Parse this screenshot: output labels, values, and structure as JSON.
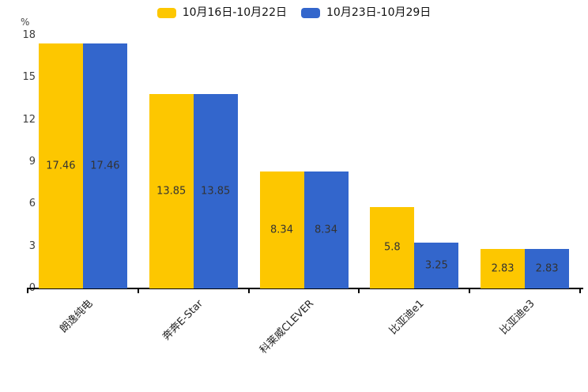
{
  "chart_data": {
    "type": "bar",
    "title": "",
    "ylabel": "%",
    "categories": [
      "朗逸纯电",
      "奔奔E-Star",
      "科莱威CLEVER",
      "比亚迪e1",
      "比亚迪e3"
    ],
    "series": [
      {
        "name": "10月16日-10月22日",
        "color": "#FDC700",
        "values": [
          17.46,
          13.85,
          8.34,
          5.8,
          2.83
        ]
      },
      {
        "name": "10月23日-10月29日",
        "color": "#3366CC",
        "values": [
          17.46,
          13.85,
          8.34,
          3.25,
          2.83
        ]
      }
    ],
    "ylim": [
      0,
      18
    ],
    "yticks": [
      0,
      3,
      6,
      9,
      12,
      15,
      18
    ],
    "grid": false,
    "legend_position": "top",
    "axis_color": "#000000",
    "value_label_color": "#333333"
  }
}
